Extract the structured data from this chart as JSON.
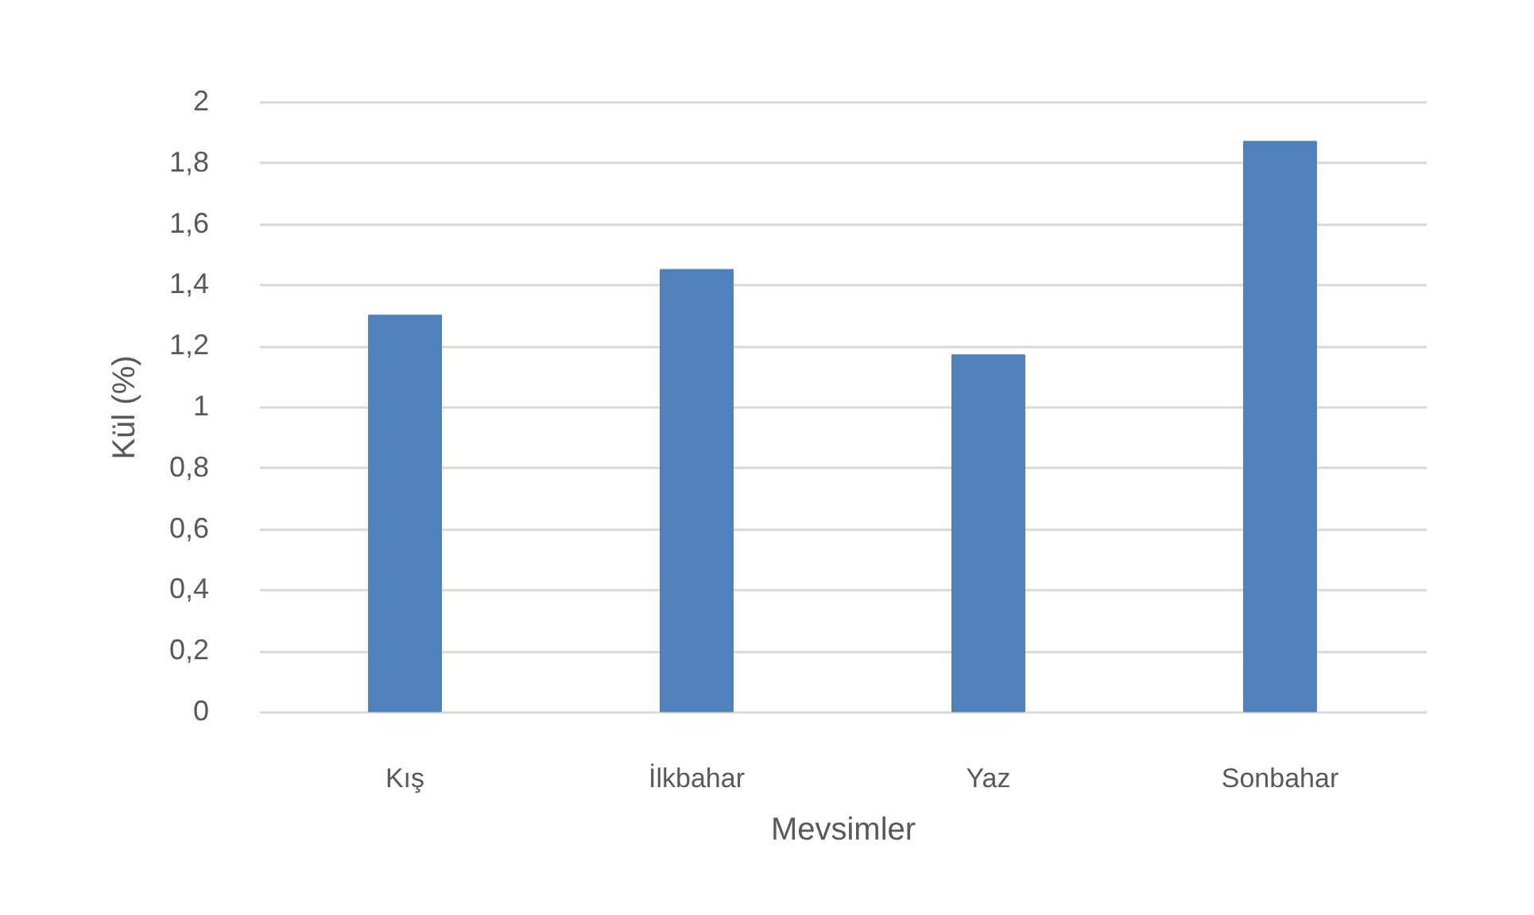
{
  "chart_data": {
    "type": "bar",
    "xlabel": "Mevsimler",
    "ylabel": "Kül (%)",
    "categories": [
      "Kış",
      "İlkbahar",
      "Yaz",
      "Sonbahar"
    ],
    "values": [
      1.3,
      1.45,
      1.17,
      1.87
    ],
    "color": "#4f81bd",
    "ylim": [
      0,
      2
    ],
    "yticks": [
      0,
      {
        "value": 0.2,
        "label": "0,2"
      },
      {
        "value": 0.4,
        "label": "0,4"
      },
      {
        "value": 0.6,
        "label": "0,6"
      },
      {
        "value": 0.8,
        "label": "0,8"
      },
      1,
      {
        "value": 1.2,
        "label": "1,2"
      },
      {
        "value": 1.4,
        "label": "1,4"
      },
      {
        "value": 1.6,
        "label": "1,6"
      },
      {
        "value": 1.8,
        "label": "1,8"
      },
      2
    ],
    "grid": "y"
  }
}
